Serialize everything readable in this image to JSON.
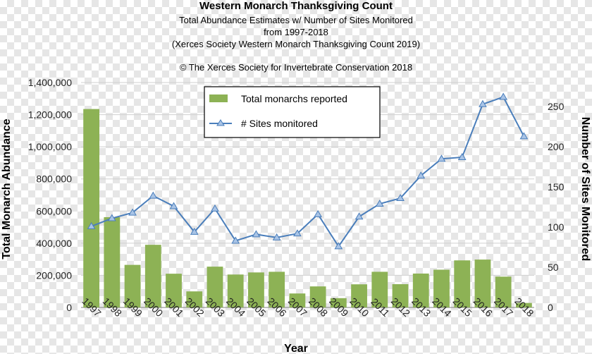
{
  "chart_data": {
    "type": "bar",
    "title": "Western Monarch Thanksgiving Count",
    "subtitle_lines": [
      "Total Abundance Estimates w/ Number of Sites Monitored",
      "from 1997-2018",
      "(Xerces Society Western Monarch Thanksgiving Count 2019)",
      "© The Xerces Society for Invertebrate Conservation 2018"
    ],
    "xlabel": "Year",
    "ylabel": "Total Monarch Abundance",
    "y2label": "Number of Sites Monitored",
    "categories": [
      "1997",
      "1998",
      "1999",
      "2000",
      "2001",
      "2002",
      "2003",
      "2004",
      "2005",
      "2006",
      "2007",
      "2008",
      "2009",
      "2010",
      "2011",
      "2012",
      "2013",
      "2014",
      "2015",
      "2016",
      "2017",
      "2018"
    ],
    "ylim": [
      0,
      1400000
    ],
    "y_ticks": [
      "0",
      "200,000",
      "400,000",
      "600,000",
      "800,000",
      "1,000,000",
      "1,200,000",
      "1,400,000"
    ],
    "y2lim": [
      0,
      280
    ],
    "y2_ticks": [
      "0",
      "50",
      "100",
      "150",
      "200",
      "250"
    ],
    "legend_position": "top-center",
    "grid": true,
    "series": [
      {
        "name": "Total monarchs reported",
        "kind": "bar",
        "color": "#8db255",
        "values": [
          1235000,
          562000,
          265000,
          390000,
          210000,
          100000,
          254000,
          205000,
          218000,
          222000,
          87000,
          131000,
          58000,
          144000,
          222000,
          145000,
          211000,
          235000,
          293000,
          298000,
          192000,
          28000
        ]
      },
      {
        "name": "# Sites monitored",
        "kind": "line",
        "axis": "right",
        "color": "#4a7ebb",
        "values": [
          101,
          111,
          118,
          139,
          126,
          94,
          123,
          83,
          91,
          87,
          92,
          116,
          76,
          113,
          129,
          136,
          164,
          185,
          187,
          253,
          262,
          213
        ]
      }
    ]
  }
}
